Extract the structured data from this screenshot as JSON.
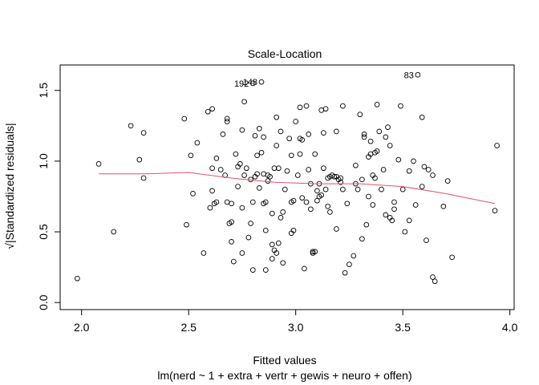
{
  "chart_data": {
    "type": "scatter",
    "title": "Scale-Location",
    "xlabel": "Fitted values",
    "subtitle": "lm(nerd ~ 1 + extra + vertr + gewis + neuro + offen)",
    "ylabel": "√|Standardized residuals|",
    "xlim": [
      1.9,
      4.02
    ],
    "ylim": [
      -0.05,
      1.68
    ],
    "xticks": [
      2.0,
      2.5,
      3.0,
      3.5,
      4.0
    ],
    "xtick_labels": [
      "2.0",
      "2.5",
      "3.0",
      "3.5",
      "4.0"
    ],
    "yticks": [
      0.0,
      0.5,
      1.0,
      1.5
    ],
    "ytick_labels": [
      "0.0",
      "0.5",
      "1.0",
      "1.5"
    ],
    "grid": false,
    "colors": {
      "points": "#000000",
      "smoother": "#DF536B",
      "axes": "#000000"
    },
    "point_labels": [
      {
        "label": "83",
        "x": 3.57,
        "y": 1.61
      },
      {
        "label": "148",
        "x": 2.84,
        "y": 1.56
      },
      {
        "label": "192",
        "x": 2.8,
        "y": 1.55
      }
    ],
    "smoother": {
      "x": [
        2.08,
        2.3,
        2.5,
        2.7,
        2.9,
        3.1,
        3.3,
        3.5,
        3.7,
        3.93
      ],
      "y": [
        0.91,
        0.91,
        0.92,
        0.88,
        0.85,
        0.84,
        0.84,
        0.82,
        0.77,
        0.7
      ]
    },
    "points": [
      [
        1.98,
        0.17
      ],
      [
        2.08,
        0.98
      ],
      [
        2.15,
        0.5
      ],
      [
        2.23,
        1.25
      ],
      [
        2.27,
        1.01
      ],
      [
        2.29,
        1.2
      ],
      [
        2.29,
        0.88
      ],
      [
        2.48,
        1.3
      ],
      [
        2.49,
        0.55
      ],
      [
        2.51,
        1.04
      ],
      [
        2.52,
        0.77
      ],
      [
        2.54,
        1.13
      ],
      [
        2.57,
        0.35
      ],
      [
        2.59,
        1.35
      ],
      [
        2.61,
        1.37
      ],
      [
        2.6,
        0.67
      ],
      [
        2.61,
        0.95
      ],
      [
        2.61,
        0.79
      ],
      [
        2.62,
        0.7
      ],
      [
        2.63,
        0.71
      ],
      [
        2.63,
        1.02
      ],
      [
        2.65,
        0.94
      ],
      [
        2.66,
        1.19
      ],
      [
        2.67,
        0.9
      ],
      [
        2.68,
        1.3
      ],
      [
        2.68,
        1.28
      ],
      [
        2.68,
        0.71
      ],
      [
        2.69,
        0.56
      ],
      [
        2.7,
        0.57
      ],
      [
        2.7,
        0.7
      ],
      [
        2.71,
        0.29
      ],
      [
        2.7,
        0.43
      ],
      [
        2.72,
        1.05
      ],
      [
        2.73,
        0.82
      ],
      [
        2.73,
        0.96
      ],
      [
        2.74,
        0.98
      ],
      [
        2.75,
        0.35
      ],
      [
        2.75,
        1.22
      ],
      [
        2.75,
        0.67
      ],
      [
        2.76,
        1.42
      ],
      [
        2.76,
        0.9
      ],
      [
        2.77,
        0.95
      ],
      [
        2.78,
        0.46
      ],
      [
        2.79,
        0.56
      ],
      [
        2.79,
        0.87
      ],
      [
        2.8,
        0.23
      ],
      [
        2.8,
        0.71
      ],
      [
        2.81,
        0.89
      ],
      [
        2.81,
        1.18
      ],
      [
        2.82,
        1.04
      ],
      [
        2.82,
        0.91
      ],
      [
        2.83,
        1.23
      ],
      [
        2.83,
        0.81
      ],
      [
        2.84,
        1.06
      ],
      [
        2.85,
        0.91
      ],
      [
        2.85,
        1.17
      ],
      [
        2.85,
        0.7
      ],
      [
        2.86,
        0.71
      ],
      [
        2.86,
        0.51
      ],
      [
        2.86,
        0.23
      ],
      [
        2.87,
        0.86
      ],
      [
        2.87,
        0.9
      ],
      [
        2.88,
        0.89
      ],
      [
        2.89,
        0.41
      ],
      [
        2.89,
        0.63
      ],
      [
        2.89,
        0.31
      ],
      [
        2.9,
        0.95
      ],
      [
        2.9,
        0.37
      ],
      [
        2.91,
        1.31
      ],
      [
        2.91,
        1.11
      ],
      [
        2.91,
        0.35
      ],
      [
        2.92,
        0.95
      ],
      [
        2.92,
        0.42
      ],
      [
        2.93,
        0.6
      ],
      [
        2.93,
        1.21
      ],
      [
        2.94,
        0.64
      ],
      [
        2.94,
        0.28
      ],
      [
        2.95,
        0.8
      ],
      [
        2.96,
        0.93
      ],
      [
        2.97,
        1.16
      ],
      [
        2.98,
        0.49
      ],
      [
        2.98,
        0.71
      ],
      [
        2.98,
        1.04
      ],
      [
        2.99,
        0.51
      ],
      [
        2.99,
        0.72
      ],
      [
        3.0,
        1.28
      ],
      [
        3.01,
        0.9
      ],
      [
        3.02,
        1.38
      ],
      [
        3.02,
        1.05
      ],
      [
        3.02,
        1.16
      ],
      [
        3.03,
        1.15
      ],
      [
        3.03,
        0.74
      ],
      [
        3.04,
        0.24
      ],
      [
        3.05,
        0.71
      ],
      [
        3.05,
        1.39
      ],
      [
        3.06,
        1.19
      ],
      [
        3.06,
        0.94
      ],
      [
        3.07,
        0.66
      ],
      [
        3.07,
        0.84
      ],
      [
        3.08,
        0.36
      ],
      [
        3.08,
        0.35
      ],
      [
        3.09,
        0.36
      ],
      [
        3.09,
        1.05
      ],
      [
        3.1,
        0.72
      ],
      [
        3.1,
        0.79
      ],
      [
        3.11,
        0.84
      ],
      [
        3.11,
        0.75
      ],
      [
        3.12,
        1.36
      ],
      [
        3.12,
        0.76
      ],
      [
        3.13,
        0.95
      ],
      [
        3.13,
        1.2
      ],
      [
        3.14,
        1.37
      ],
      [
        3.14,
        0.8
      ],
      [
        3.15,
        0.68
      ],
      [
        3.15,
        0.88
      ],
      [
        3.16,
        0.64
      ],
      [
        3.16,
        0.89
      ],
      [
        3.17,
        0.9
      ],
      [
        3.18,
        0.89
      ],
      [
        3.19,
        0.52
      ],
      [
        3.19,
        0.89
      ],
      [
        3.19,
        1.21
      ],
      [
        3.2,
        0.87
      ],
      [
        3.21,
        0.88
      ],
      [
        3.21,
        0.85
      ],
      [
        3.22,
        0.8
      ],
      [
        3.22,
        1.39
      ],
      [
        3.23,
        0.21
      ],
      [
        3.24,
        0.7
      ],
      [
        3.25,
        0.27
      ],
      [
        3.27,
        0.33
      ],
      [
        3.28,
        0.84
      ],
      [
        3.28,
        0.97
      ],
      [
        3.29,
        0.8
      ],
      [
        3.3,
        1.33
      ],
      [
        3.31,
        0.45
      ],
      [
        3.31,
        0.87
      ],
      [
        3.32,
        1.19
      ],
      [
        3.32,
        1.17
      ],
      [
        3.33,
        0.55
      ],
      [
        3.34,
        1.03
      ],
      [
        3.34,
        0.75
      ],
      [
        3.35,
        1.05
      ],
      [
        3.35,
        1.14
      ],
      [
        3.36,
        0.9
      ],
      [
        3.36,
        0.69
      ],
      [
        3.37,
        0.88
      ],
      [
        3.37,
        1.06
      ],
      [
        3.38,
        1.4
      ],
      [
        3.38,
        1.07
      ],
      [
        3.39,
        1.21
      ],
      [
        3.4,
        0.8
      ],
      [
        3.41,
        0.94
      ],
      [
        3.42,
        1.17
      ],
      [
        3.42,
        0.62
      ],
      [
        3.43,
        1.24
      ],
      [
        3.44,
        1.11
      ],
      [
        3.44,
        0.6
      ],
      [
        3.45,
        0.58
      ],
      [
        3.46,
        0.71
      ],
      [
        3.46,
        0.66
      ],
      [
        3.48,
        1.01
      ],
      [
        3.49,
        1.39
      ],
      [
        3.5,
        0.8
      ],
      [
        3.51,
        0.5
      ],
      [
        3.53,
        0.93
      ],
      [
        3.53,
        0.58
      ],
      [
        3.55,
        1.0
      ],
      [
        3.56,
        0.69
      ],
      [
        3.59,
        0.82
      ],
      [
        3.59,
        1.31
      ],
      [
        3.6,
        0.96
      ],
      [
        3.61,
        0.44
      ],
      [
        3.62,
        0.94
      ],
      [
        3.64,
        0.9
      ],
      [
        3.64,
        0.18
      ],
      [
        3.65,
        0.15
      ],
      [
        3.69,
        0.68
      ],
      [
        3.71,
        0.86
      ],
      [
        3.73,
        0.32
      ],
      [
        3.93,
        0.65
      ],
      [
        3.94,
        1.11
      ],
      [
        2.8,
        1.55
      ],
      [
        2.84,
        1.56
      ],
      [
        3.57,
        1.61
      ]
    ]
  }
}
